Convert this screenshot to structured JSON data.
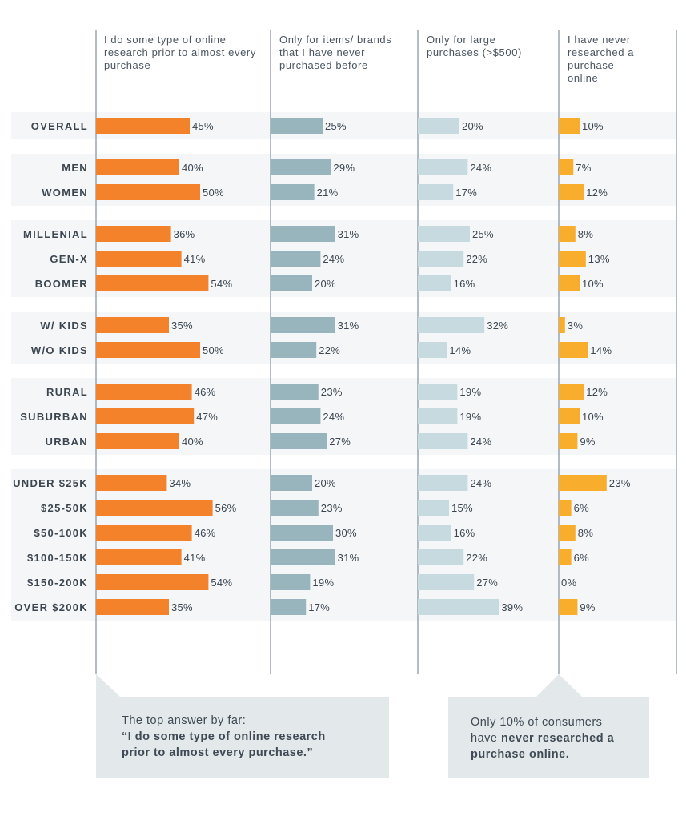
{
  "chart_data": {
    "type": "bar",
    "orientation": "horizontal",
    "columns": [
      "I do some type of online research prior to almost every purchase",
      "Only for items/ brands that I have never purchased before",
      "Only for large purchases (>$500)",
      "I have never researched a purchase online"
    ],
    "groups": [
      {
        "rows": [
          {
            "label": "OVERALL",
            "values": [
              45,
              25,
              20,
              10
            ]
          }
        ]
      },
      {
        "rows": [
          {
            "label": "MEN",
            "values": [
              40,
              29,
              24,
              7
            ]
          },
          {
            "label": "WOMEN",
            "values": [
              50,
              21,
              17,
              12
            ]
          }
        ]
      },
      {
        "rows": [
          {
            "label": "MILLENIAL",
            "values": [
              36,
              31,
              25,
              8
            ]
          },
          {
            "label": "GEN-X",
            "values": [
              41,
              24,
              22,
              13
            ]
          },
          {
            "label": "BOOMER",
            "values": [
              54,
              20,
              16,
              10
            ]
          }
        ]
      },
      {
        "rows": [
          {
            "label": "W/ KIDS",
            "values": [
              35,
              31,
              32,
              3
            ]
          },
          {
            "label": "W/O KIDS",
            "values": [
              50,
              22,
              14,
              14
            ]
          }
        ]
      },
      {
        "rows": [
          {
            "label": "RURAL",
            "values": [
              46,
              23,
              19,
              12
            ]
          },
          {
            "label": "SUBURBAN",
            "values": [
              47,
              24,
              19,
              10
            ]
          },
          {
            "label": "URBAN",
            "values": [
              40,
              27,
              24,
              9
            ]
          }
        ]
      },
      {
        "rows": [
          {
            "label": "UNDER $25K",
            "values": [
              34,
              20,
              24,
              23
            ]
          },
          {
            "label": "$25-50K",
            "values": [
              56,
              23,
              15,
              6
            ]
          },
          {
            "label": "$50-100K",
            "values": [
              46,
              30,
              16,
              8
            ]
          },
          {
            "label": "$100-150K",
            "values": [
              41,
              31,
              22,
              6
            ]
          },
          {
            "label": "$150-200K",
            "values": [
              54,
              19,
              27,
              0
            ]
          },
          {
            "label": "OVER $200K",
            "values": [
              35,
              17,
              39,
              9
            ]
          }
        ]
      }
    ],
    "value_suffix": "%",
    "series_colors": [
      "#f4822a",
      "#98b5bd",
      "#c7dadf",
      "#f9ad2c"
    ],
    "grid": false,
    "legend": "none"
  },
  "callouts": [
    {
      "line1": "The top answer by far:",
      "line2": "“I do some type of online research",
      "line3": "prior to almost every purchase.”"
    },
    {
      "line1": "Only 10% of consumers",
      "line2a": "have ",
      "line2b": "never researched a",
      "line3": "purchase online."
    }
  ]
}
